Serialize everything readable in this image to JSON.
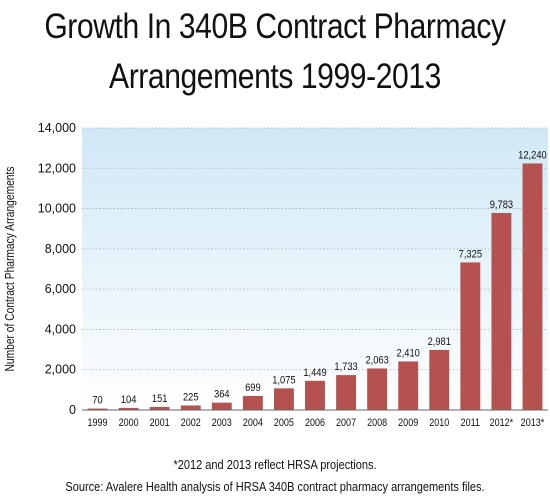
{
  "title_line1": "Growth In 340B Contract Pharmacy",
  "title_line2": "Arrangements 1999-2013",
  "footnote": "*2012 and 2013 reflect HRSA projections.",
  "source": "Source: Avalere Health analysis of HRSA 340B contract pharmacy arrangements files.",
  "colors": {
    "bar": "#b5524f",
    "bg_top": "#cfe8f6",
    "bg_bottom": "#ffffff",
    "grid": "#9fb3bf"
  },
  "chart_data": {
    "type": "bar",
    "title": "Growth In 340B Contract Pharmacy Arrangements 1999-2013",
    "xlabel": "",
    "ylabel": "Number of Contract Pharmacy Arrangements",
    "ylim": [
      0,
      14000
    ],
    "yticks": [
      0,
      2000,
      4000,
      6000,
      8000,
      10000,
      12000,
      14000
    ],
    "ytick_labels": [
      "0",
      "2,000",
      "4,000",
      "6,000",
      "8,000",
      "10,000",
      "12,000",
      "14,000"
    ],
    "categories": [
      "1999",
      "2000",
      "2001",
      "2002",
      "2003",
      "2004",
      "2005",
      "2006",
      "2007",
      "2008",
      "2009",
      "2010",
      "2011",
      "2012*",
      "2013*"
    ],
    "values": [
      70,
      104,
      151,
      225,
      364,
      699,
      1075,
      1449,
      1733,
      2063,
      2410,
      2981,
      7325,
      9783,
      12240
    ],
    "data_labels": [
      "70",
      "104",
      "151",
      "225",
      "364",
      "699",
      "1,075",
      "1,449",
      "1,733",
      "2,063",
      "2,410",
      "2,981",
      "7,325",
      "9,783",
      "12,240"
    ],
    "grid": true,
    "legend": "none"
  }
}
